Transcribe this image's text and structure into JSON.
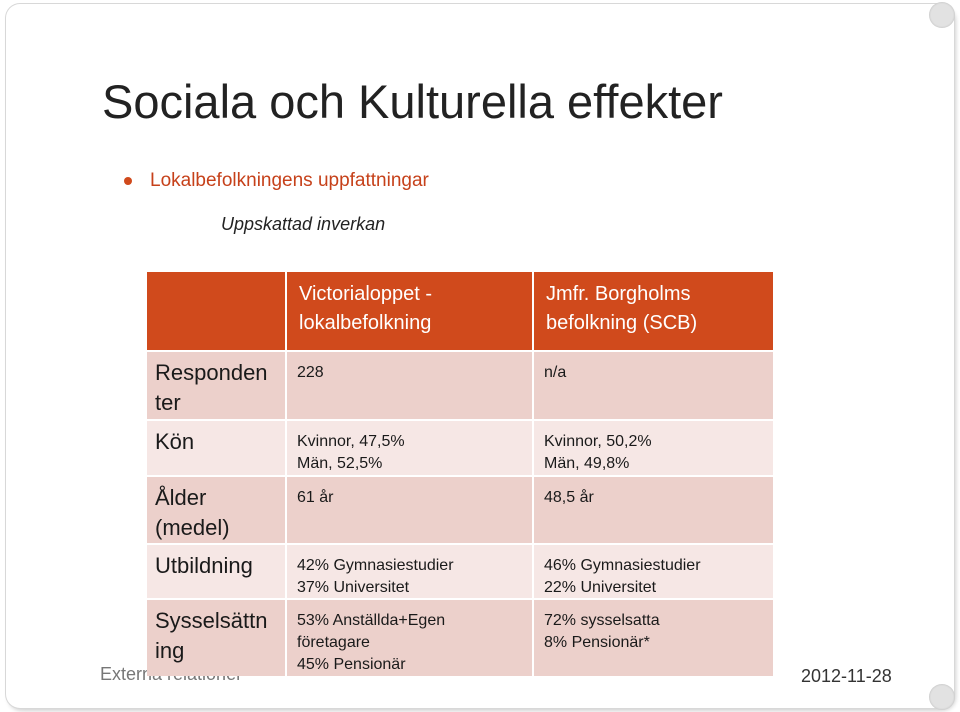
{
  "slide": {
    "title": "Sociala och Kulturella effekter",
    "bullet": "Lokalbefolkningens uppfattningar",
    "subtitle": "Uppskattad inverkan",
    "footer_left": "Externa relationer",
    "footer_right": "2012-11-28"
  },
  "colors": {
    "header_bg": "#d04a1c",
    "row_dark": "#ecd0cb",
    "row_light": "#f6e7e5",
    "bullet": "#c6411a"
  },
  "table": {
    "headers": [
      [
        "Victorialoppet -",
        "lokalbefolkning"
      ],
      [
        "Jmfr. Borgholms",
        "befolkning (SCB)"
      ]
    ],
    "rows": [
      {
        "label": [
          "Responden",
          "ter"
        ],
        "col1": [
          "228"
        ],
        "col2": [
          "n/a"
        ]
      },
      {
        "label": [
          "Kön"
        ],
        "col1": [
          "Kvinnor, 47,5%",
          "Män, 52,5%"
        ],
        "col2": [
          "Kvinnor, 50,2%",
          "Män, 49,8%"
        ]
      },
      {
        "label": [
          "Ålder",
          "(medel)"
        ],
        "col1": [
          "61 år"
        ],
        "col2": [
          "48,5 år"
        ]
      },
      {
        "label": [
          "Utbildning"
        ],
        "col1": [
          "42% Gymnasiestudier",
          "37% Universitet"
        ],
        "col2": [
          "46% Gymnasiestudier",
          "22% Universitet"
        ]
      },
      {
        "label": [
          "Sysselsättn",
          "ing"
        ],
        "col1": [
          "53% Anställda+Egen",
          "företagare",
          "45% Pensionär"
        ],
        "col2": [
          "72% sysselsatta",
          "8% Pensionär*"
        ]
      }
    ]
  }
}
